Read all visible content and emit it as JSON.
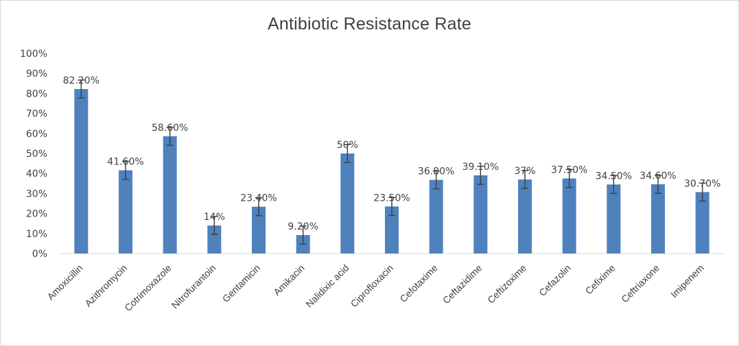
{
  "chart_data": {
    "type": "bar",
    "title": "Antibiotic Resistance Rate",
    "xlabel": "",
    "ylabel": "",
    "ylim": [
      0,
      100
    ],
    "y_ticks": [
      "0%",
      "10%",
      "20%",
      "30%",
      "40%",
      "50%",
      "60%",
      "70%",
      "80%",
      "90%",
      "100%"
    ],
    "y_tick_values": [
      0,
      10,
      20,
      30,
      40,
      50,
      60,
      70,
      80,
      90,
      100
    ],
    "grid": false,
    "legend": "none",
    "bar_color": "#4f81bd",
    "error_bar_color": "#404040",
    "categories": [
      "Amoxicillin",
      "Azithromycin",
      "Cotrimoxazole",
      "Nitrofurantoin",
      "Gentamicin",
      "Amikacin",
      "Nalidixic acid",
      "Ciprofloxacin",
      "Cefotaxime",
      "Ceftazidime",
      "Ceftizoxime",
      "Cefazolin",
      "Cefixime",
      "Ceftriaxone",
      "Imipenem"
    ],
    "values": [
      82.2,
      41.6,
      58.6,
      14,
      23.4,
      9.2,
      50,
      23.5,
      36.8,
      39.1,
      37,
      37.5,
      34.5,
      34.6,
      30.7
    ],
    "error": [
      4.5,
      4.5,
      4.5,
      4.5,
      4.5,
      4.5,
      4.5,
      4.5,
      4.5,
      4.5,
      4.5,
      4.5,
      4.5,
      4.5,
      4.5
    ],
    "data_labels": [
      "82.20%",
      "41.60%",
      "58.60%",
      "14%",
      "23.40%",
      "9.20%",
      "50%",
      "23.50%",
      "36.80%",
      "39.10%",
      "37%",
      "37.50%",
      "34.50%",
      "34.60%",
      "30.70%"
    ]
  }
}
